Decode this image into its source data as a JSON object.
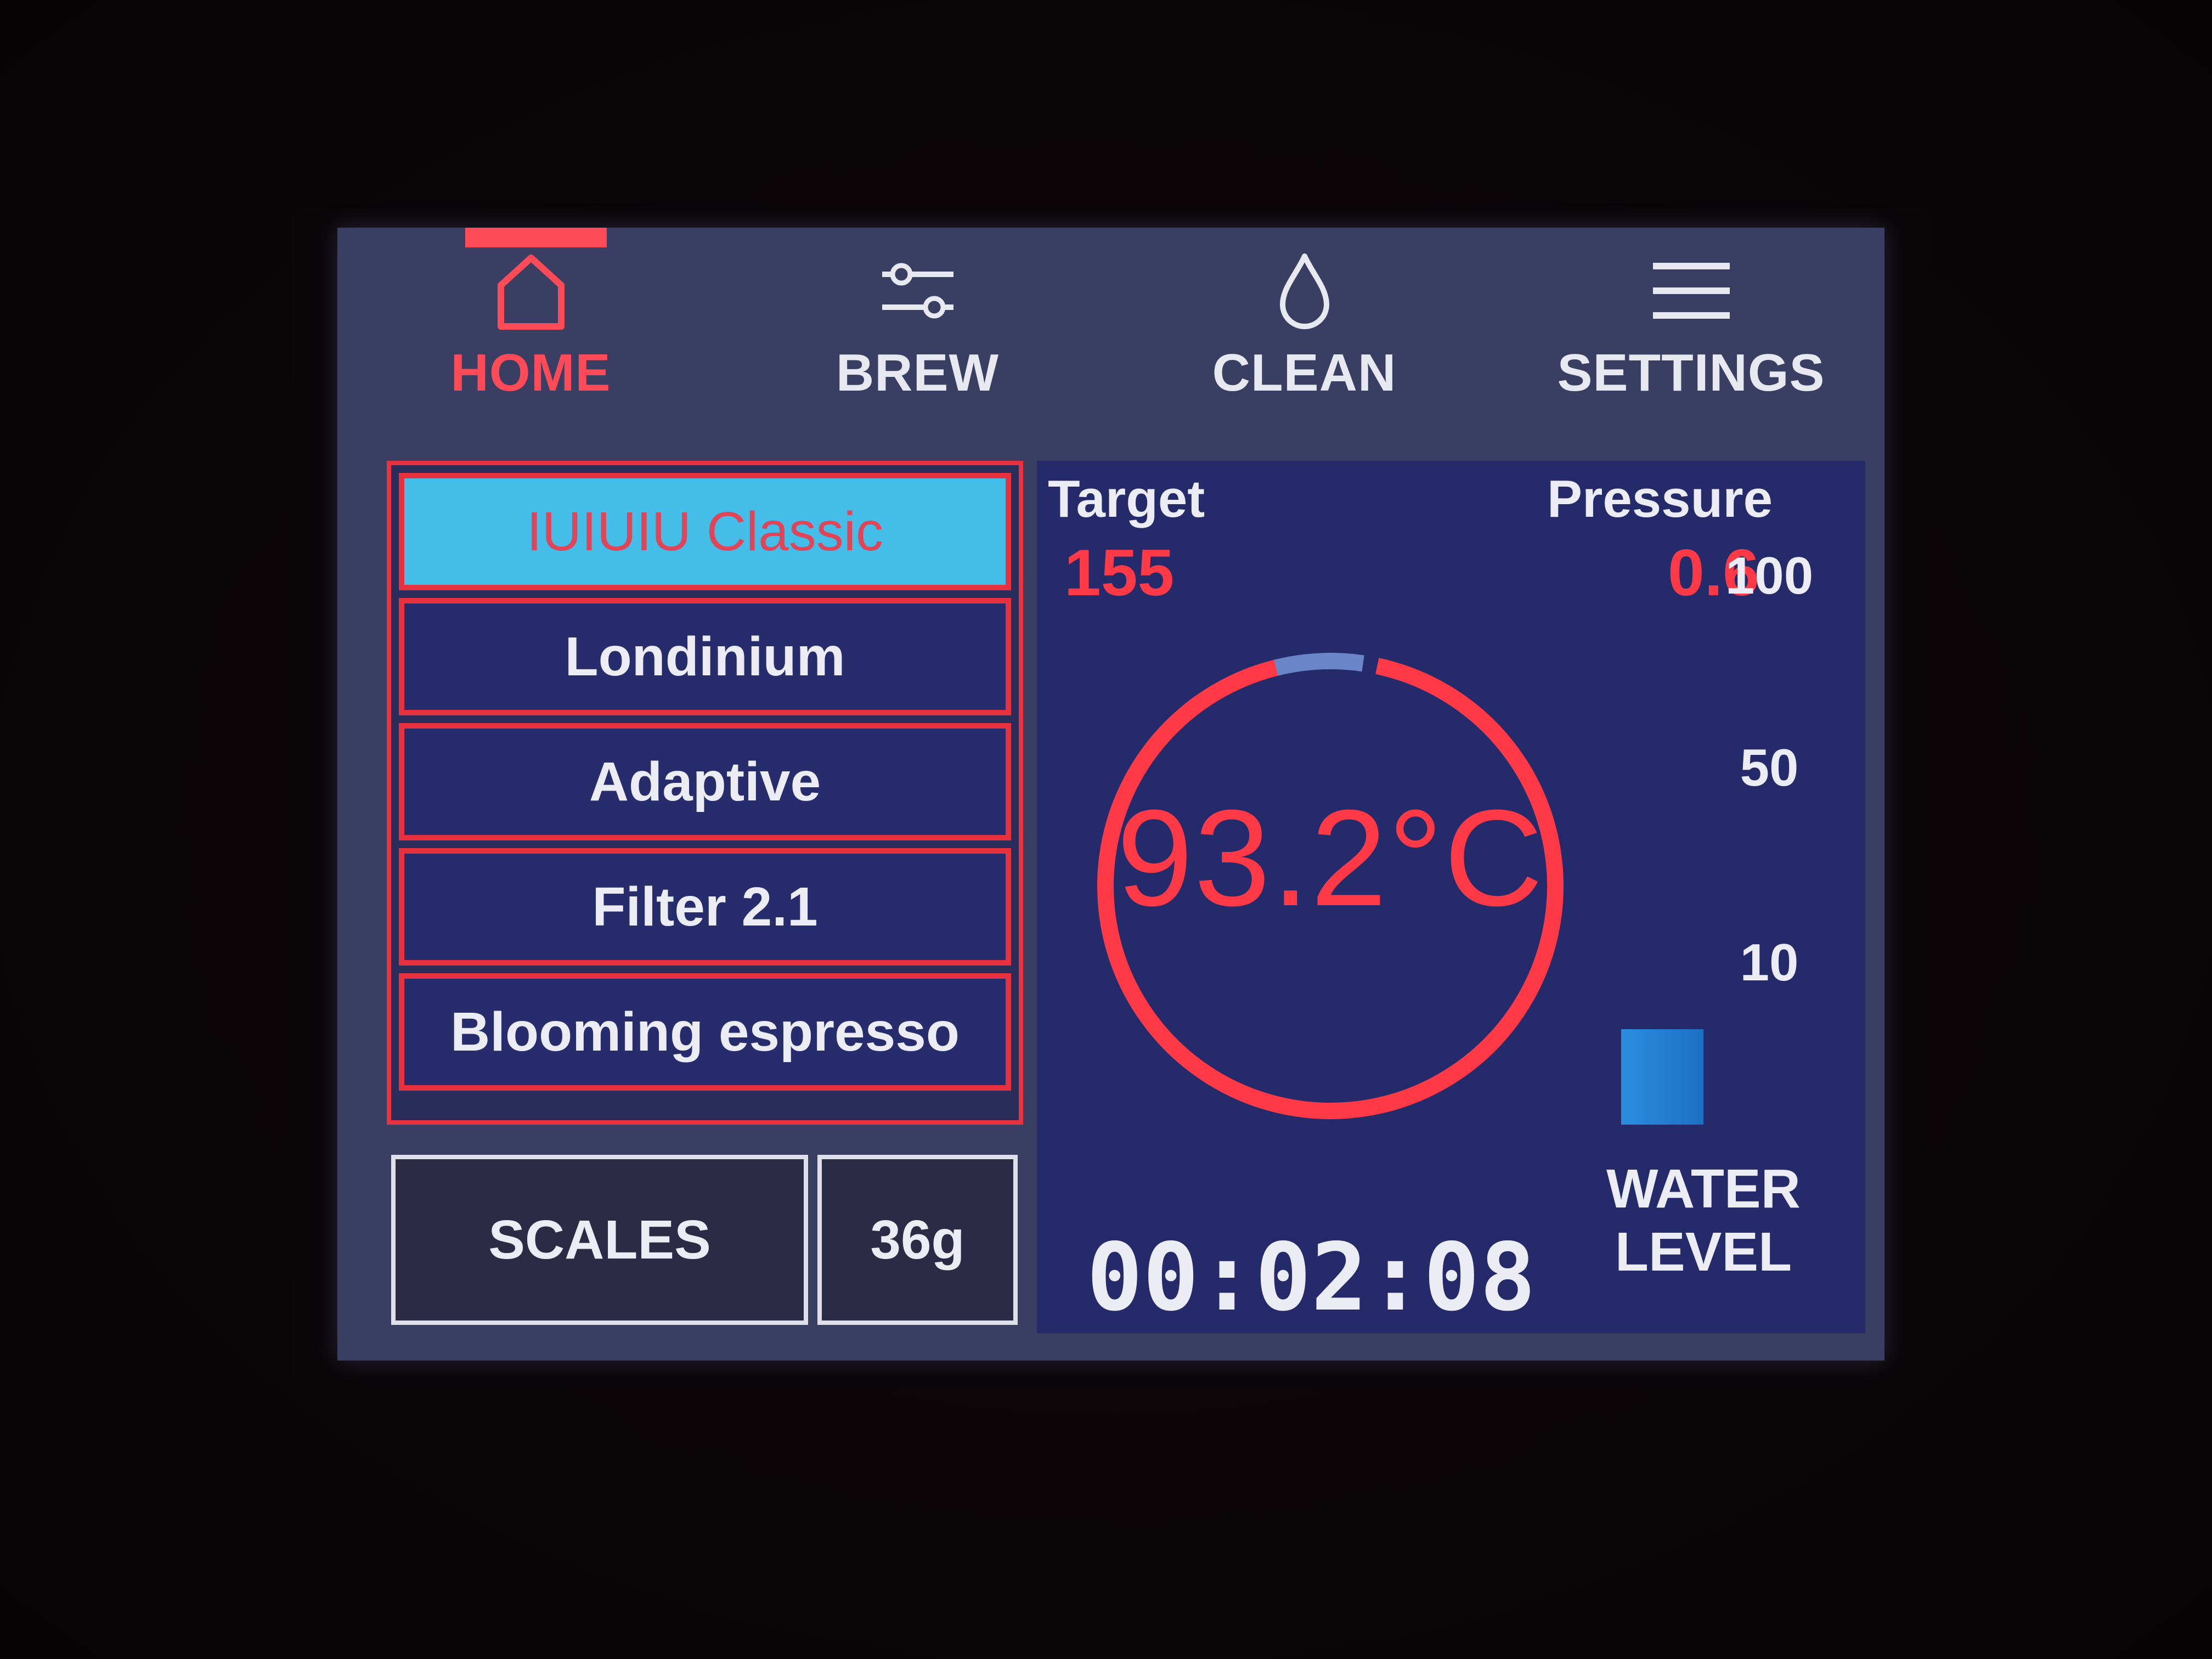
{
  "tabs": [
    {
      "label": "HOME",
      "icon": "home-icon",
      "active": true
    },
    {
      "label": "BREW",
      "icon": "sliders-icon",
      "active": false
    },
    {
      "label": "CLEAN",
      "icon": "droplet-icon",
      "active": false
    },
    {
      "label": "SETTINGS",
      "icon": "menu-icon",
      "active": false
    }
  ],
  "profiles": [
    {
      "label": "IUIUIU Classic",
      "selected": true
    },
    {
      "label": "Londinium",
      "selected": false
    },
    {
      "label": "Adaptive",
      "selected": false
    },
    {
      "label": "Filter 2.1",
      "selected": false
    },
    {
      "label": "Blooming espresso",
      "selected": false
    }
  ],
  "scales": {
    "button_label": "SCALES",
    "weight": "36g"
  },
  "target": {
    "label": "Target",
    "value": "155"
  },
  "pressure": {
    "label": "Pressure",
    "value": "0.6"
  },
  "temperature": {
    "display": "93.2°C"
  },
  "timer": "00:02:08",
  "water_level": {
    "ticks": [
      "100",
      "50",
      "10"
    ],
    "label_line1": "WATER",
    "label_line2": "LEVEL",
    "fill_fraction": 0.2
  },
  "colors": {
    "accent": "#ff4a58",
    "screen_bg": "#3a3e63",
    "panel_bg": "#252a6a",
    "selected_bg": "#44bde8",
    "water": "#2a8ee0",
    "ring": "#ff3a46",
    "ring_gap": "#6a86c8"
  }
}
